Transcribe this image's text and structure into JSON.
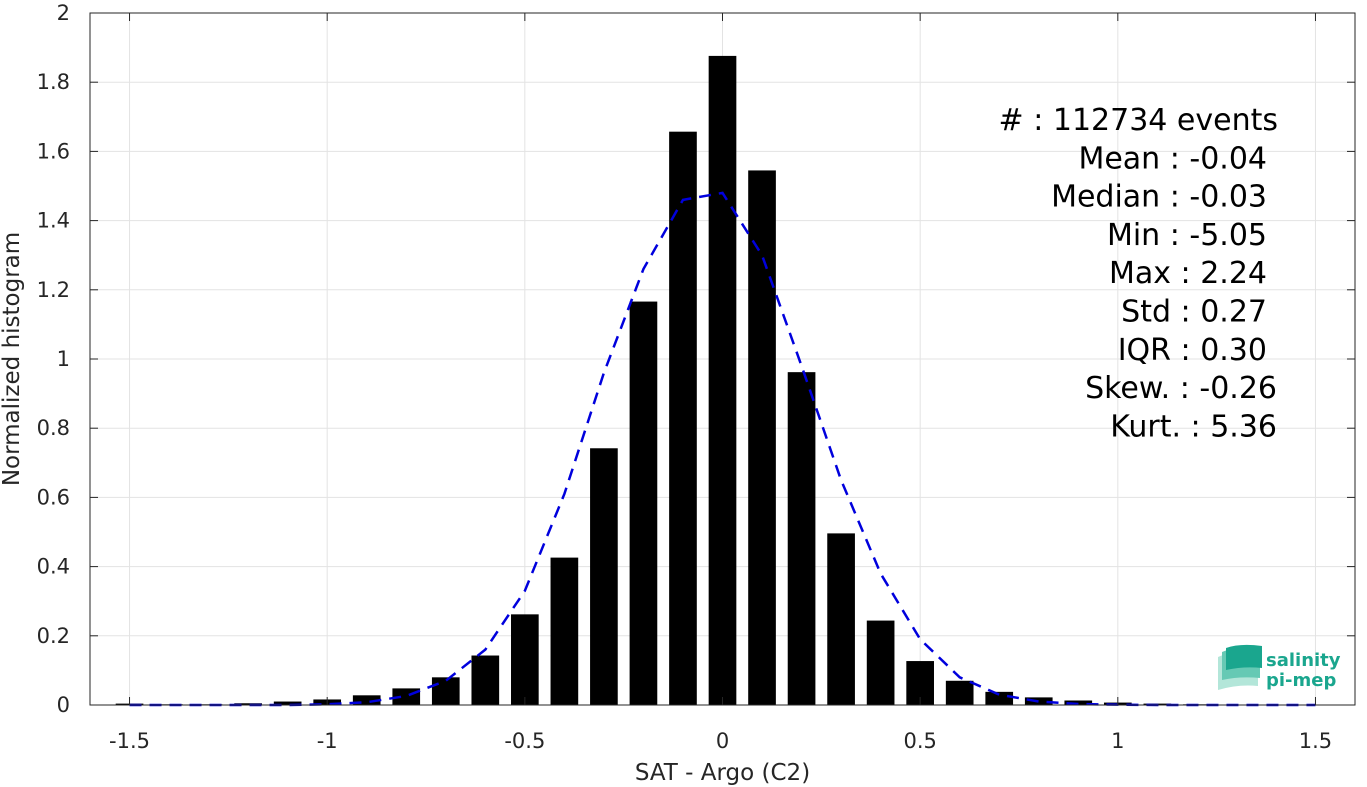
{
  "chart_data": {
    "type": "bar",
    "xlabel": "SAT - Argo (C2)",
    "ylabel": "Normalized histogram",
    "xlim": [
      -1.6,
      1.6
    ],
    "ylim": [
      0,
      2
    ],
    "xticks": [
      -1.5,
      -1,
      -0.5,
      0,
      0.5,
      1,
      1.5
    ],
    "xtick_labels": [
      "-1.5",
      "-1",
      "-0.5",
      "0",
      "0.5",
      "1",
      "1.5"
    ],
    "yticks": [
      0,
      0.2,
      0.4,
      0.6,
      0.8,
      1,
      1.2,
      1.4,
      1.6,
      1.8,
      2
    ],
    "ytick_labels": [
      "0",
      "0.2",
      "0.4",
      "0.6",
      "0.8",
      "1",
      "1.2",
      "1.4",
      "1.6",
      "1.8",
      "2"
    ],
    "grid": true,
    "bars": {
      "x": [
        -1.5,
        -1.4,
        -1.3,
        -1.2,
        -1.1,
        -1.0,
        -0.9,
        -0.8,
        -0.7,
        -0.6,
        -0.5,
        -0.4,
        -0.3,
        -0.2,
        -0.1,
        0.0,
        0.1,
        0.2,
        0.3,
        0.4,
        0.5,
        0.6,
        0.7,
        0.8,
        0.9,
        1.0,
        1.1,
        1.2,
        1.3,
        1.4,
        1.5
      ],
      "values": [
        0.004,
        0.002,
        0.002,
        0.005,
        0.01,
        0.016,
        0.028,
        0.048,
        0.08,
        0.143,
        0.262,
        0.426,
        0.742,
        1.166,
        1.657,
        1.876,
        1.545,
        0.962,
        0.496,
        0.244,
        0.127,
        0.07,
        0.038,
        0.022,
        0.013,
        0.007,
        0.004,
        0.002,
        0.001,
        0.001,
        0.001
      ],
      "width": 0.07,
      "color": "#000000"
    },
    "fit_curve": {
      "style": "dashed",
      "color": "#0000dd",
      "x": [
        -1.5,
        -1.4,
        -1.3,
        -1.2,
        -1.1,
        -1.0,
        -0.9,
        -0.8,
        -0.7,
        -0.6,
        -0.5,
        -0.4,
        -0.3,
        -0.2,
        -0.1,
        0.0,
        0.1,
        0.2,
        0.3,
        0.4,
        0.5,
        0.6,
        0.7,
        0.8,
        0.9,
        1.0,
        1.1,
        1.2,
        1.3,
        1.4,
        1.5
      ],
      "y": [
        0.0,
        0.0,
        0.0,
        0.0,
        0.0,
        0.002,
        0.008,
        0.026,
        0.07,
        0.16,
        0.33,
        0.61,
        0.96,
        1.26,
        1.46,
        1.48,
        1.3,
        0.98,
        0.65,
        0.38,
        0.19,
        0.08,
        0.03,
        0.01,
        0.003,
        0.001,
        0.0,
        0.0,
        0.0,
        0.0,
        0.0
      ]
    },
    "annotations": [
      "#  : 112734 events",
      "Mean : -0.04",
      "Median : -0.03",
      "Min : -5.05",
      "Max : 2.24",
      "Std : 0.27",
      "IQR : 0.30",
      "Skew. : -0.26",
      "Kurt. : 5.36"
    ]
  },
  "logo": {
    "line1": "salinity",
    "line2": "pi-mep",
    "colors": [
      "#1aa68e",
      "#66c9b4",
      "#b3e6d9"
    ]
  }
}
